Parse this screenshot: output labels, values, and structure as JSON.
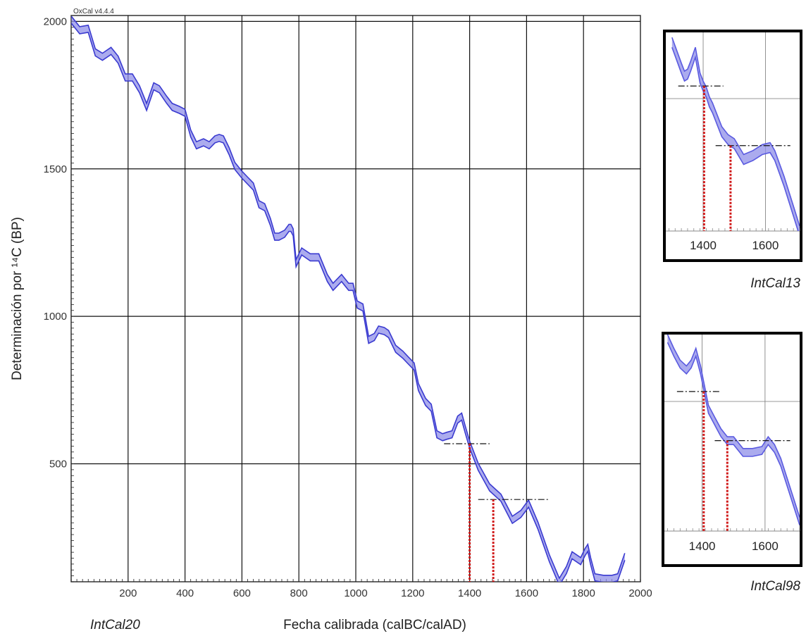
{
  "chart_data": [
    {
      "type": "area",
      "caption": "IntCal20",
      "version": "OxCal v4.4.4",
      "xlabel": "Fecha calibrada (calBC/calAD)",
      "ylabel": "Determinación  por ¹⁴C (BP)",
      "xlim": [
        0,
        2000
      ],
      "ylim": [
        100,
        2020
      ],
      "xticks": [
        200,
        400,
        600,
        800,
        1000,
        1200,
        1400,
        1600,
        1800,
        2000
      ],
      "yticks": [
        500,
        1000,
        1500,
        2000
      ],
      "series": [
        {
          "color": "#3a3ad0",
          "x": [
            1,
            30,
            60,
            85,
            110,
            140,
            165,
            190,
            215,
            240,
            265,
            290,
            310,
            335,
            355,
            380,
            400,
            420,
            440,
            465,
            485,
            505,
            520,
            535,
            555,
            575,
            600,
            620,
            640,
            660,
            680,
            700,
            715,
            730,
            750,
            765,
            772,
            780,
            790,
            810,
            840,
            870,
            900,
            920,
            950,
            975,
            990,
            1005,
            1025,
            1045,
            1065,
            1080,
            1100,
            1115,
            1140,
            1165,
            1185,
            1205,
            1220,
            1245,
            1265,
            1285,
            1305,
            1320,
            1338,
            1358,
            1372,
            1385,
            1400,
            1430,
            1470,
            1510,
            1550,
            1580,
            1607,
            1640,
            1680,
            1715,
            1740,
            1760,
            1790,
            1805,
            1815,
            1825,
            1840,
            1870,
            1900,
            1920,
            1945
          ],
          "y": [
            2005,
            1970,
            1975,
            1895,
            1880,
            1900,
            1870,
            1810,
            1810,
            1770,
            1710,
            1780,
            1770,
            1735,
            1710,
            1700,
            1690,
            1620,
            1580,
            1590,
            1580,
            1600,
            1605,
            1600,
            1560,
            1510,
            1480,
            1460,
            1440,
            1380,
            1370,
            1320,
            1270,
            1270,
            1280,
            1300,
            1300,
            1285,
            1180,
            1220,
            1200,
            1200,
            1130,
            1100,
            1130,
            1100,
            1100,
            1040,
            1030,
            920,
            930,
            955,
            950,
            940,
            890,
            870,
            850,
            830,
            760,
            710,
            690,
            600,
            590,
            595,
            600,
            650,
            660,
            615,
            565,
            490,
            420,
            385,
            310,
            330,
            365,
            290,
            180,
            100,
            140,
            190,
            170,
            200,
            215,
            170,
            115,
            110,
            110,
            115,
            185
          ],
          "band": 12
        }
      ],
      "annotations": {
        "h_lines": [
          {
            "x1": 1310,
            "x2": 1470,
            "y": 568
          },
          {
            "x1": 1430,
            "x2": 1680,
            "y": 379
          }
        ],
        "v_lines": [
          {
            "x": 1400,
            "y_top": 568
          },
          {
            "x": 1483,
            "y_top": 379
          }
        ]
      }
    },
    {
      "type": "area",
      "caption": "IntCal13",
      "xlim": [
        1280,
        1710
      ],
      "xticks": [
        1400,
        1600
      ],
      "series": [
        {
          "color": "#5a5ae0",
          "x": [
            1300,
            1330,
            1340,
            1350,
            1360,
            1375,
            1390,
            1400,
            1410,
            1420,
            1430,
            1440,
            1460,
            1480,
            1500,
            1530,
            1560,
            1590,
            1615,
            1630,
            1660,
            1690,
            1710
          ],
          "y": [
            0.95,
            0.82,
            0.78,
            0.79,
            0.83,
            0.9,
            0.77,
            0.73,
            0.7,
            0.65,
            0.62,
            0.58,
            0.5,
            0.46,
            0.44,
            0.36,
            0.38,
            0.41,
            0.42,
            0.38,
            0.25,
            0.1,
            0.0
          ],
          "band": 0.025
        }
      ],
      "annotations": {
        "h_lines": [
          {
            "x1": 1320,
            "x2": 1465,
            "y": 0.73
          },
          {
            "x1": 1440,
            "x2": 1680,
            "y": 0.43
          }
        ],
        "v_lines": [
          {
            "x": 1403,
            "y_top": 0.73
          },
          {
            "x": 1488,
            "y_top": 0.43
          }
        ]
      }
    },
    {
      "type": "area",
      "caption": "IntCal98",
      "xlim": [
        1280,
        1710
      ],
      "xticks": [
        1400,
        1600
      ],
      "series": [
        {
          "color": "#5a5ae0",
          "x": [
            1290,
            1310,
            1330,
            1350,
            1365,
            1380,
            1395,
            1405,
            1420,
            1440,
            1460,
            1480,
            1500,
            1530,
            1560,
            1590,
            1610,
            1630,
            1650,
            1680,
            1710
          ],
          "y": [
            0.98,
            0.91,
            0.85,
            0.82,
            0.85,
            0.91,
            0.82,
            0.74,
            0.62,
            0.56,
            0.5,
            0.46,
            0.46,
            0.4,
            0.4,
            0.41,
            0.46,
            0.42,
            0.35,
            0.2,
            0.05
          ],
          "band": 0.02
        }
      ],
      "annotations": {
        "h_lines": [
          {
            "x1": 1320,
            "x2": 1460,
            "y": 0.71
          },
          {
            "x1": 1440,
            "x2": 1680,
            "y": 0.46
          }
        ],
        "v_lines": [
          {
            "x": 1405,
            "y_top": 0.71
          },
          {
            "x": 1480,
            "y_top": 0.46
          }
        ]
      }
    }
  ]
}
